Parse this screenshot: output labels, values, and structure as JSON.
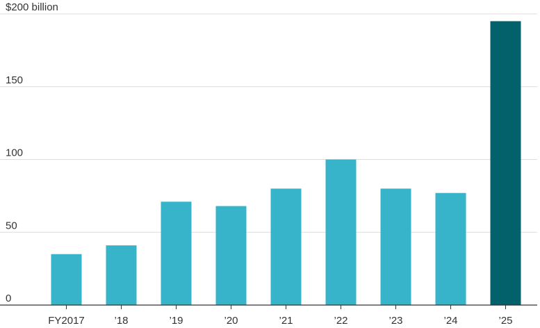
{
  "chart_data": {
    "type": "bar",
    "title": "",
    "xlabel": "",
    "ylabel": "",
    "ylim": [
      0,
      200
    ],
    "yticks": [
      0,
      50,
      100,
      150,
      200
    ],
    "ytick_labels": [
      "0",
      "50",
      "100",
      "150",
      "$200 billion"
    ],
    "grid": true,
    "categories": [
      "FY2017",
      "’18",
      "’19",
      "’20",
      "’21",
      "’22",
      "’23",
      "’24",
      "’25"
    ],
    "values": [
      35,
      41,
      71,
      68,
      80,
      100,
      80,
      77,
      195
    ],
    "colors": {
      "default": "#37b4ca",
      "highlight": "#02616a",
      "highlight_index": 8
    }
  }
}
